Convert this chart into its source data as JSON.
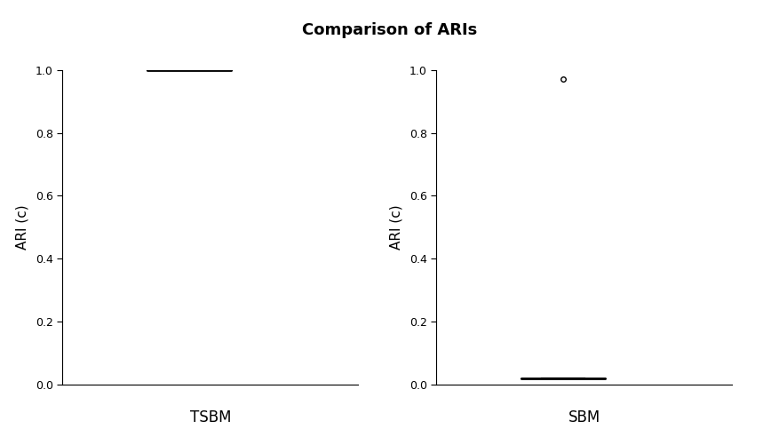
{
  "title": "Comparison of ARIs",
  "left_label": "TSBM",
  "right_label": "SBM",
  "left_ylabel": "ARI (c)",
  "right_ylabel": "ARI (c)",
  "ylim": [
    0.0,
    1.0
  ],
  "yticks": [
    0.0,
    0.2,
    0.4,
    0.6,
    0.8,
    1.0
  ],
  "tsbm_median": 1.0,
  "tsbm_q1": 1.0,
  "tsbm_q3": 1.0,
  "tsbm_whislo": 1.0,
  "tsbm_whishi": 1.0,
  "tsbm_fliers": [],
  "sbm_median": 0.02,
  "sbm_q1": 0.02,
  "sbm_q3": 0.02,
  "sbm_whislo": 0.02,
  "sbm_whishi": 0.02,
  "sbm_fliers": [
    0.97
  ],
  "box_color": "black",
  "background_color": "white",
  "title_fontsize": 13,
  "label_fontsize": 11,
  "tick_fontsize": 9,
  "xlabel_fontsize": 12
}
